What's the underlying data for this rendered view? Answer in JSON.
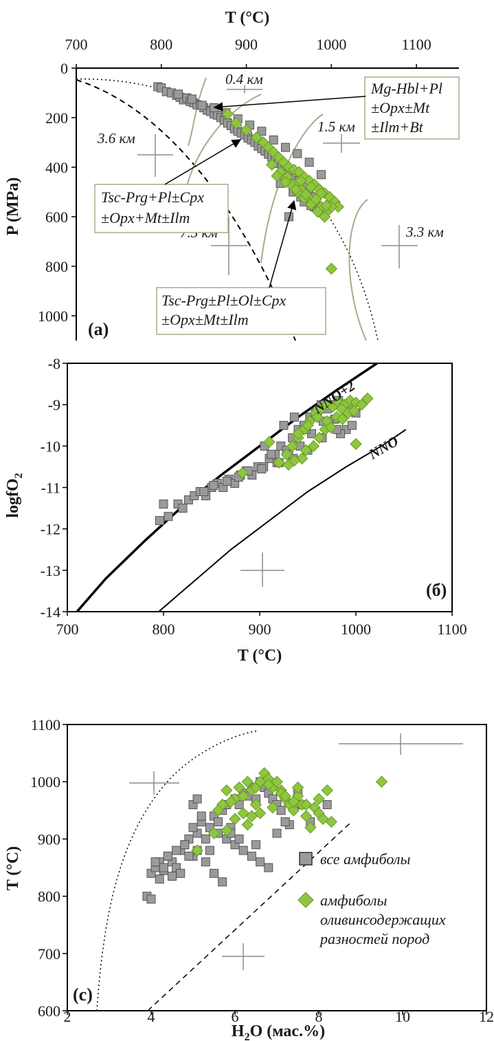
{
  "chart_data": [
    {
      "id": "a",
      "type": "scatter",
      "panel_label": "(a)",
      "xlabel": "T (°C)",
      "ylabel": "P (MPa)",
      "xlim": [
        700,
        1150
      ],
      "ylim": [
        0,
        1100
      ],
      "y_inverted": true,
      "x_axis_position": "top",
      "xticks": [
        700,
        800,
        900,
        1000,
        1100
      ],
      "yticks": [
        0,
        200,
        400,
        600,
        800,
        1000
      ],
      "series": [
        {
          "marker": "square",
          "color": "#9a9a9a",
          "x": [
            796,
            800,
            806,
            812,
            818,
            822,
            826,
            830,
            834,
            838,
            842,
            846,
            850,
            854,
            858,
            862,
            866,
            870,
            874,
            878,
            882,
            886,
            890,
            894,
            898,
            902,
            906,
            910,
            914,
            918,
            922,
            926,
            930,
            934,
            938,
            942,
            946,
            950,
            954,
            958,
            962,
            966,
            970,
            974,
            978,
            820,
            836,
            848,
            862,
            876,
            890,
            904,
            918,
            932,
            946,
            960,
            974,
            988,
            940,
            955,
            968,
            980,
            992,
            950,
            964,
            976
          ],
          "y": [
            75,
            80,
            95,
            100,
            110,
            118,
            128,
            120,
            135,
            140,
            148,
            150,
            160,
            170,
            175,
            185,
            190,
            200,
            210,
            222,
            232,
            245,
            255,
            262,
            270,
            282,
            290,
            300,
            315,
            325,
            335,
            348,
            360,
            372,
            385,
            395,
            405,
            420,
            435,
            445,
            455,
            470,
            480,
            500,
            520,
            105,
            125,
            150,
            160,
            180,
            205,
            230,
            255,
            290,
            320,
            345,
            380,
            430,
            465,
            500,
            540,
            560,
            570,
            600,
            520,
            555
          ],
          "name": ""
        },
        {
          "marker": "diamond",
          "color": "#8ec63f",
          "x": [
            878,
            888,
            900,
            912,
            920,
            926,
            932,
            938,
            944,
            950,
            956,
            962,
            968,
            974,
            980,
            986,
            992,
            998,
            1004,
            1008,
            930,
            940,
            948,
            956,
            964,
            972,
            980,
            988,
            996,
            952,
            960,
            968,
            976,
            984,
            992,
            1000,
            936,
            946,
            958,
            970,
            982,
            994,
            964,
            976,
            988,
            1000
          ],
          "y": [
            185,
            222,
            250,
            280,
            300,
            320,
            340,
            360,
            380,
            400,
            410,
            420,
            440,
            455,
            470,
            490,
            505,
            520,
            540,
            560,
            390,
            420,
            440,
            470,
            490,
            520,
            540,
            560,
            575,
            470,
            500,
            525,
            550,
            580,
            600,
            560,
            435,
            460,
            490,
            510,
            530,
            555,
            455,
            480,
            505,
            810
          ],
          "name": ""
        }
      ],
      "annotations": [
        "0.4 км",
        "1.5 км",
        "3.6 км",
        "7.3 км",
        "3.3 км"
      ],
      "labels": [
        "Mg-Hbl+Pl",
        "±Opx±Mt",
        "±Ilm+Bt",
        "Tsc-Prg+Pl±Cpx",
        "±Opx+Mt±Ilm",
        "Tsc-Prg±Pl±Ol±Cpx",
        "±Opx±Mt±Ilm"
      ]
    },
    {
      "id": "b",
      "type": "scatter",
      "panel_label": "(б)",
      "xlabel": "T (°C)",
      "ylabel": "logfO2",
      "xlim": [
        700,
        1100
      ],
      "ylim": [
        -14,
        -8
      ],
      "xticks": [
        700,
        800,
        900,
        1000,
        1100
      ],
      "yticks": [
        -8,
        -9,
        -10,
        -11,
        -12,
        -13,
        -14
      ],
      "lines": [
        {
          "name": "NNO+2",
          "x": [
            710,
            740,
            780,
            820,
            860,
            900,
            940,
            980,
            1022
          ],
          "y": [
            -14,
            -13.2,
            -12.3,
            -11.45,
            -10.7,
            -10.0,
            -9.3,
            -8.65,
            -8.0
          ]
        },
        {
          "name": "NNO",
          "x": [
            795,
            830,
            870,
            910,
            950,
            990,
            1030,
            1052
          ],
          "y": [
            -14,
            -13.3,
            -12.5,
            -11.8,
            -11.1,
            -10.5,
            -9.95,
            -9.6
          ]
        }
      ],
      "series": [
        {
          "marker": "square",
          "color": "#9a9a9a",
          "x": [
            796,
            800,
            805,
            815,
            820,
            826,
            832,
            838,
            844,
            850,
            856,
            862,
            868,
            874,
            880,
            886,
            892,
            898,
            904,
            910,
            916,
            922,
            928,
            934,
            940,
            946,
            952,
            958,
            964,
            970,
            976,
            982,
            988,
            994,
            1000,
            842,
            852,
            866,
            878,
            888,
            902,
            918,
            930,
            942,
            954,
            966,
            978,
            990,
            925,
            936,
            948,
            960,
            972,
            984,
            996,
            905,
            912,
            920,
            935,
            950,
            965,
            980
          ],
          "y": [
            -11.8,
            -11.4,
            -11.7,
            -11.4,
            -11.5,
            -11.3,
            -11.2,
            -11.1,
            -11.2,
            -11.0,
            -10.9,
            -11.0,
            -10.8,
            -10.9,
            -10.7,
            -10.6,
            -10.7,
            -10.5,
            -10.5,
            -10.3,
            -10.2,
            -10.0,
            -10.1,
            -9.8,
            -9.6,
            -9.5,
            -9.3,
            -9.2,
            -9.0,
            -9.1,
            -9.0,
            -8.9,
            -9.1,
            -9.0,
            -9.2,
            -11.1,
            -10.95,
            -10.85,
            -10.75,
            -10.6,
            -10.55,
            -10.4,
            -10.2,
            -10.0,
            -9.7,
            -9.4,
            -9.35,
            -9.6,
            -9.5,
            -9.3,
            -9.6,
            -9.2,
            -9.4,
            -9.7,
            -9.5,
            -10.0,
            -10.2,
            -10.4,
            -10.3,
            -10.1,
            -9.8,
            -9.6
          ],
          "name": ""
        },
        {
          "marker": "diamond",
          "color": "#8ec63f",
          "x": [
            882,
            910,
            920,
            928,
            934,
            940,
            946,
            952,
            958,
            964,
            970,
            976,
            982,
            988,
            994,
            1000,
            1006,
            1012,
            930,
            944,
            956,
            968,
            980,
            992,
            940,
            950,
            960,
            970,
            985,
            1000,
            936,
            948,
            962,
            974,
            986,
            998
          ],
          "y": [
            -10.65,
            -9.9,
            -10.4,
            -10.2,
            -10.0,
            -9.8,
            -9.6,
            -9.4,
            -9.2,
            -9.1,
            -9.0,
            -9.05,
            -8.95,
            -9.0,
            -8.9,
            -8.95,
            -9.0,
            -8.85,
            -10.45,
            -10.3,
            -10.0,
            -9.6,
            -9.3,
            -9.2,
            -9.7,
            -9.5,
            -9.3,
            -9.4,
            -9.1,
            -9.95,
            -10.35,
            -10.1,
            -9.8,
            -9.55,
            -9.35,
            -9.15
          ],
          "name": ""
        }
      ]
    },
    {
      "id": "c",
      "type": "scatter",
      "panel_label": "(c)",
      "xlabel": "H2O (мас.%)",
      "ylabel": "T (°C)",
      "xlim": [
        2,
        12
      ],
      "ylim": [
        600,
        1100
      ],
      "xticks": [
        2,
        4,
        6,
        8,
        10,
        12
      ],
      "yticks": [
        600,
        700,
        800,
        900,
        1000,
        1100
      ],
      "series": [
        {
          "name": "все амфиболы",
          "marker": "square",
          "color": "#9a9a9a",
          "x": [
            3.9,
            4.0,
            4.1,
            4.2,
            4.3,
            4.4,
            4.5,
            4.6,
            4.7,
            4.8,
            4.9,
            5.0,
            5.1,
            5.2,
            5.3,
            5.4,
            5.5,
            5.6,
            5.7,
            5.8,
            5.9,
            6.0,
            6.1,
            6.2,
            6.3,
            6.4,
            6.5,
            6.6,
            6.7,
            6.8,
            6.9,
            7.0,
            7.1,
            7.2,
            7.3,
            7.4,
            7.5,
            7.6,
            7.8,
            8.2,
            4.0,
            4.2,
            4.4,
            4.6,
            4.8,
            5.0,
            5.2,
            5.4,
            5.6,
            5.8,
            6.0,
            6.2,
            6.4,
            6.6,
            6.8,
            7.0,
            7.2,
            4.1,
            4.3,
            4.5,
            4.7,
            4.9,
            5.1,
            5.3,
            5.5,
            5.7,
            5.9,
            6.1,
            6.5,
            5.0,
            5.1
          ],
          "y": [
            800,
            840,
            850,
            860,
            845,
            870,
            860,
            850,
            880,
            890,
            900,
            870,
            910,
            930,
            900,
            920,
            940,
            930,
            950,
            960,
            920,
            970,
            960,
            980,
            975,
            990,
            970,
            1000,
            990,
            980,
            970,
            960,
            950,
            930,
            925,
            960,
            980,
            960,
            930,
            960,
            795,
            830,
            870,
            880,
            890,
            920,
            940,
            880,
            910,
            900,
            890,
            880,
            870,
            860,
            850,
            910,
            930,
            860,
            850,
            835,
            840,
            870,
            880,
            860,
            840,
            825,
            910,
            900,
            890,
            960,
            970
          ],
          "name_hint": "legend"
        },
        {
          "name": "амфиболы оливинсодержащих разностей пород",
          "marker": "diamond",
          "color": "#8ec63f",
          "x": [
            5.1,
            5.5,
            5.7,
            5.8,
            6.0,
            6.1,
            6.2,
            6.3,
            6.4,
            6.5,
            6.6,
            6.7,
            6.8,
            6.9,
            7.0,
            7.1,
            7.2,
            7.3,
            7.4,
            7.5,
            7.6,
            7.7,
            7.8,
            7.9,
            8.0,
            8.1,
            8.2,
            8.3,
            9.5,
            5.6,
            5.9,
            6.2,
            6.5,
            6.8,
            7.1,
            7.4,
            7.7,
            8.0,
            6.0,
            6.3,
            6.6,
            6.9,
            7.2,
            7.5,
            5.8,
            6.4,
            7.0
          ],
          "y": [
            880,
            910,
            960,
            985,
            970,
            990,
            975,
            1000,
            985,
            990,
            1000,
            1015,
            1005,
            990,
            1000,
            985,
            970,
            960,
            950,
            975,
            960,
            940,
            920,
            955,
            945,
            935,
            985,
            930,
            1000,
            950,
            965,
            945,
            960,
            995,
            980,
            965,
            960,
            970,
            935,
            925,
            945,
            955,
            975,
            990,
            915,
            940,
            1000
          ],
          "name_hint": "legend"
        }
      ],
      "legend": [
        "все амфиболы",
        "амфиболы оливинсодержащих разностей пород"
      ]
    }
  ],
  "text": {
    "a_title": "T (°C)",
    "a_ylabel": "P (MPa)",
    "b_xlabel": "T (°C)",
    "b_ylabel": "logfO",
    "b_ylabel_sub": "2",
    "c_ylabel": "T (°C)",
    "c_xlabel_main": "H",
    "c_xlabel_sub": "2",
    "c_xlabel_rest": "O (мас.%)",
    "nno2": "NNO+2",
    "nno": "NNO",
    "box1": [
      "Mg-Hbl+Pl",
      "±Opx±Mt",
      "±Ilm+Bt"
    ],
    "box2": [
      "Tsc-Prg+Pl±Cpx",
      "±Opx+Mt±Ilm"
    ],
    "box3": [
      "Tsc-Prg±Pl±Ol±Cpx",
      "±Opx±Mt±Ilm"
    ],
    "legend1": "все  амфиболы",
    "legend2a": "амфиболы",
    "legend2b": "оливинсодержащих",
    "legend2c": "разностей пород"
  }
}
